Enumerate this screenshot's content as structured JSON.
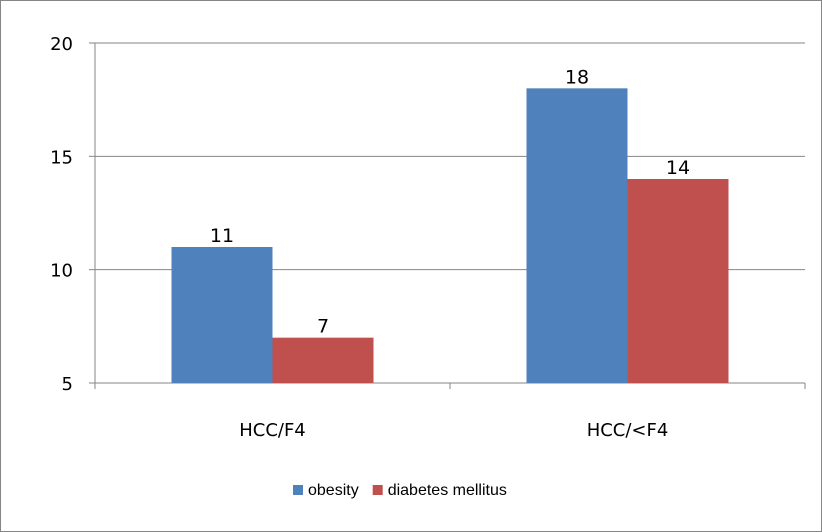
{
  "chart_data": {
    "type": "bar",
    "categories": [
      "HCC/F4",
      "HCC/<F4"
    ],
    "series": [
      {
        "name": "obesity",
        "values": [
          11,
          18
        ],
        "color": "#4F81BD"
      },
      {
        "name": "diabetes mellitus",
        "values": [
          7,
          14
        ],
        "color": "#C0504D"
      }
    ],
    "ylim": [
      5,
      20
    ],
    "yticks": [
      5,
      10,
      15,
      20
    ],
    "grid": true,
    "legend": "bottom",
    "data_labels": true
  }
}
